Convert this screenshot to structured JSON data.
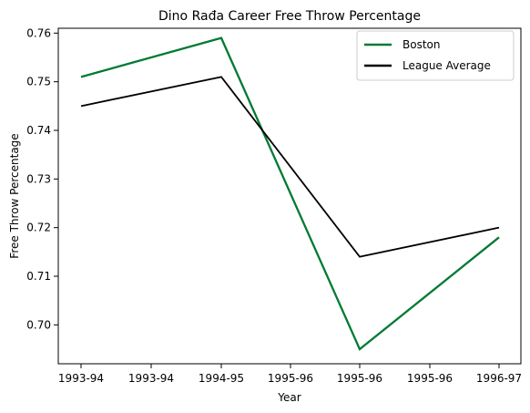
{
  "chart_data": {
    "type": "line",
    "title": "Dino Rađa Career Free Throw Percentage",
    "xlabel": "Year",
    "ylabel": "Free Throw Percentage",
    "x_tick_labels": [
      "1993-94",
      "1993-94",
      "1994-95",
      "1995-96",
      "1995-96",
      "1995-96",
      "1996-97"
    ],
    "y_ticks": [
      0.7,
      0.71,
      0.72,
      0.73,
      0.74,
      0.75,
      0.76
    ],
    "y_tick_labels": [
      "0.70",
      "0.71",
      "0.72",
      "0.73",
      "0.74",
      "0.75",
      "0.76"
    ],
    "ylim": [
      0.692,
      0.761
    ],
    "series": [
      {
        "name": "Boston",
        "color": "#007A33",
        "points": [
          {
            "x": "1993-94",
            "y": 0.751
          },
          {
            "x": "1994-95",
            "y": 0.759
          },
          {
            "x": "1995-96",
            "y": 0.695
          },
          {
            "x": "1996-97",
            "y": 0.718
          }
        ]
      },
      {
        "name": "League Average",
        "color": "#000000",
        "points": [
          {
            "x": "1993-94",
            "y": 0.745
          },
          {
            "x": "1994-95",
            "y": 0.751
          },
          {
            "x": "1995-96",
            "y": 0.714
          },
          {
            "x": "1996-97",
            "y": 0.72
          }
        ]
      }
    ],
    "legend_position": "top-right",
    "grid": false
  }
}
